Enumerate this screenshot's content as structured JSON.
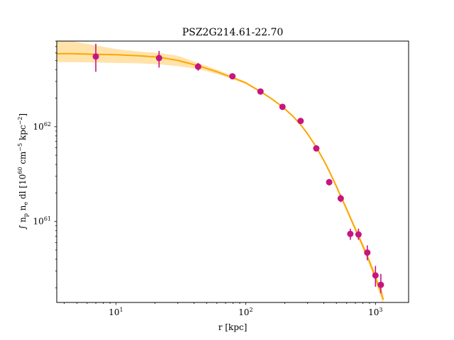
{
  "chart_data": {
    "type": "scatter",
    "title": "PSZ2G214.61-22.70",
    "xlabel": "r [kpc]",
    "ylabel_parts": [
      "∫ n",
      "p",
      " n",
      "e",
      " dl [10",
      "60",
      " cm",
      "−5",
      " kpc",
      "−2",
      "]"
    ],
    "x_scale": "log",
    "y_scale": "log",
    "xlim": [
      3.5,
      1800
    ],
    "ylim": [
      1.4e+60,
      8e+62
    ],
    "x_ticks": [
      {
        "value": 10,
        "label_base": "10",
        "label_exp": "1"
      },
      {
        "value": 100,
        "label_base": "10",
        "label_exp": "2"
      },
      {
        "value": 1000,
        "label_base": "10",
        "label_exp": "3"
      }
    ],
    "y_ticks": [
      {
        "value": 1e+61,
        "label_base": "10",
        "label_exp": "61"
      },
      {
        "value": 1e+62,
        "label_base": "10",
        "label_exp": "62"
      }
    ],
    "data_points": {
      "color": "#c7157f",
      "points": [
        {
          "x": 7,
          "y": 5.5e+62,
          "ylo": 3.8e+62,
          "yhi": 7.5e+62
        },
        {
          "x": 21.5,
          "y": 5.3e+62,
          "ylo": 4.2e+62,
          "yhi": 6.3e+62
        },
        {
          "x": 43,
          "y": 4.3e+62,
          "ylo": 3.9e+62,
          "yhi": 4.7e+62
        },
        {
          "x": 79,
          "y": 3.4e+62,
          "ylo": 3.25e+62,
          "yhi": 3.6e+62
        },
        {
          "x": 130,
          "y": 2.35e+62,
          "ylo": 2.28e+62,
          "yhi": 2.42e+62
        },
        {
          "x": 192,
          "y": 1.62e+62,
          "ylo": 1.57e+62,
          "yhi": 1.67e+62
        },
        {
          "x": 265,
          "y": 1.15e+62,
          "ylo": 1.11e+62,
          "yhi": 1.2e+62
        },
        {
          "x": 350,
          "y": 5.9e+61,
          "ylo": 5.6e+61,
          "yhi": 6.2e+61
        },
        {
          "x": 440,
          "y": 2.6e+61,
          "ylo": 2.4e+61,
          "yhi": 2.8e+61
        },
        {
          "x": 540,
          "y": 1.75e+61,
          "ylo": 1.6e+61,
          "yhi": 1.92e+61
        },
        {
          "x": 640,
          "y": 7.4e+60,
          "ylo": 6.4e+60,
          "yhi": 8.4e+60
        },
        {
          "x": 740,
          "y": 7.3e+60,
          "ylo": 6.4e+60,
          "yhi": 8.4e+60
        },
        {
          "x": 865,
          "y": 4.7e+60,
          "ylo": 3.9e+60,
          "yhi": 5.6e+60
        },
        {
          "x": 1000,
          "y": 2.7e+60,
          "ylo": 2.05e+60,
          "yhi": 3.4e+60
        },
        {
          "x": 1100,
          "y": 2.15e+60,
          "ylo": 1.75e+60,
          "yhi": 2.8e+60
        }
      ]
    },
    "model_curve": {
      "color": "#ffa500",
      "band_color": "#ffd98f",
      "x": [
        3.5,
        4.5,
        7,
        10,
        15,
        21.5,
        30,
        43,
        60,
        79,
        100,
        130,
        160,
        192,
        230,
        265,
        300,
        350,
        400,
        440,
        500,
        540,
        600,
        640,
        700,
        740,
        800,
        865,
        950,
        1000,
        1060,
        1100,
        1150
      ],
      "y": [
        5.9e+62,
        5.9e+62,
        5.8e+62,
        5.75e+62,
        5.6e+62,
        5.4e+62,
        5e+62,
        4.4e+62,
        3.8e+62,
        3.3e+62,
        2.9e+62,
        2.35e+62,
        1.95e+62,
        1.62e+62,
        1.3e+62,
        1.05e+62,
        8.4e+61,
        6.1e+61,
        4.4e+61,
        3.4e+61,
        2.35e+61,
        1.85e+61,
        1.35e+61,
        1.1e+61,
        8.3e+60,
        7e+60,
        5.5e+60,
        4.3e+60,
        3.1e+60,
        2.55e+60,
        2.05e+60,
        1.8e+60,
        1.5e+60
      ],
      "y_lo": [
        4.8e+62,
        4.8e+62,
        4.75e+62,
        4.7e+62,
        4.65e+62,
        4.55e+62,
        4.35e+62,
        4.05e+62,
        3.6e+62,
        3.18e+62,
        2.82e+62,
        2.3e+62,
        1.91e+62,
        1.59e+62,
        1.27e+62,
        1.03e+62,
        8.2e+61,
        5.9e+61,
        4.25e+61,
        3.28e+61,
        2.25e+61,
        1.76e+61,
        1.28e+61,
        1.04e+61,
        7.8e+60,
        6.5e+60,
        5.1e+60,
        3.95e+60,
        2.8e+60,
        2.3e+60,
        1.8e+60,
        1.58e+60,
        1.3e+60
      ],
      "y_hi": [
        8.5e+62,
        8e+62,
        7.2e+62,
        6.6e+62,
        6.2e+62,
        6e+62,
        5.6e+62,
        4.7e+62,
        4e+62,
        3.42e+62,
        2.98e+62,
        2.4e+62,
        1.99e+62,
        1.65e+62,
        1.33e+62,
        1.07e+62,
        8.6e+61,
        6.3e+61,
        4.55e+61,
        3.52e+61,
        2.45e+61,
        1.94e+61,
        1.42e+61,
        1.16e+61,
        8.8e+60,
        7.5e+60,
        5.9e+60,
        4.65e+60,
        3.4e+60,
        2.8e+60,
        2.3e+60,
        2.02e+60,
        1.72e+60
      ]
    }
  }
}
